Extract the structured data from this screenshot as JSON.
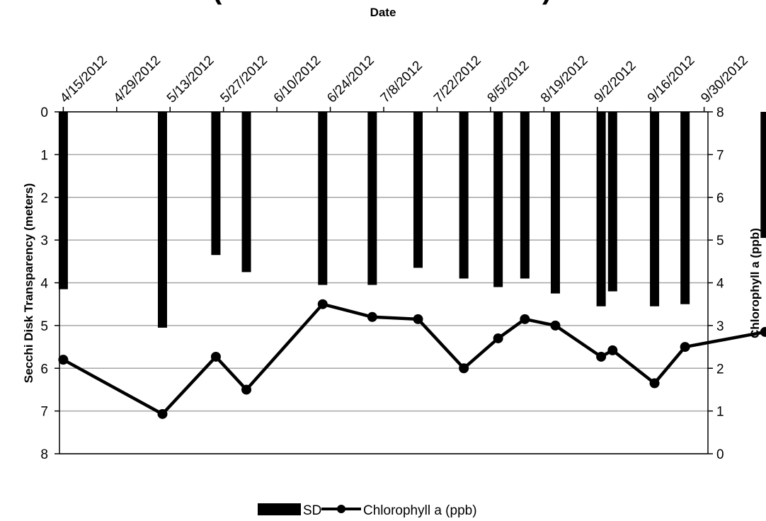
{
  "chart_data": {
    "type": "bar",
    "title": "(",
    "title_right": ")",
    "xlabel": "Date",
    "ylabel_left": "Secchi Disk Transparency (meters)",
    "ylabel_right": "Chlorophyll a (ppb)",
    "x_ticks": [
      "4/15/2012",
      "4/29/2012",
      "5/13/2012",
      "5/27/2012",
      "6/10/2012",
      "6/24/2012",
      "7/8/2012",
      "7/22/2012",
      "8/5/2012",
      "8/19/2012",
      "9/2/2012",
      "9/16/2012",
      "9/30/2012"
    ],
    "x_axis_position": "top",
    "xlim": [
      "4/14/2012",
      "10/1/2012"
    ],
    "y_left_ticks": [
      "0",
      "1",
      "2",
      "3",
      "4",
      "5",
      "6",
      "7",
      "8"
    ],
    "y_left_range": [
      0,
      8
    ],
    "y_left_inverted": true,
    "y_right_ticks": [
      "0",
      "1",
      "2",
      "3",
      "4",
      "5",
      "6",
      "7",
      "8"
    ],
    "y_right_range": [
      0,
      8
    ],
    "grid": "horizontal",
    "legend_placement": "bottom",
    "series": [
      {
        "name": "SD",
        "type": "bar",
        "axis": "left",
        "color": "#000000",
        "x": [
          "4/15/2012",
          "5/11/2012",
          "5/25/2012",
          "6/2/2012",
          "6/22/2012",
          "7/5/2012",
          "7/17/2012",
          "7/29/2012",
          "8/7/2012",
          "8/14/2012",
          "8/22/2012",
          "9/3/2012",
          "9/6/2012",
          "9/17/2012",
          "9/25/2012",
          "10/16/2012"
        ],
        "values": [
          4.15,
          5.05,
          3.35,
          3.75,
          4.05,
          4.05,
          3.65,
          3.9,
          4.1,
          3.9,
          4.25,
          4.55,
          4.2,
          4.55,
          4.5,
          2.95
        ]
      },
      {
        "name": "Chlorophyll a (ppb)",
        "type": "line",
        "axis": "right",
        "color": "#000000",
        "x": [
          "4/15/2012",
          "5/11/2012",
          "5/25/2012",
          "6/2/2012",
          "6/22/2012",
          "7/5/2012",
          "7/17/2012",
          "7/29/2012",
          "8/7/2012",
          "8/14/2012",
          "8/22/2012",
          "9/3/2012",
          "9/6/2012",
          "9/17/2012",
          "9/25/2012",
          "10/16/2012"
        ],
        "values": [
          2.2,
          0.93,
          2.27,
          1.5,
          3.5,
          3.2,
          3.15,
          2.0,
          2.7,
          3.15,
          3.0,
          2.27,
          2.42,
          1.65,
          2.5,
          2.85
        ]
      }
    ]
  }
}
